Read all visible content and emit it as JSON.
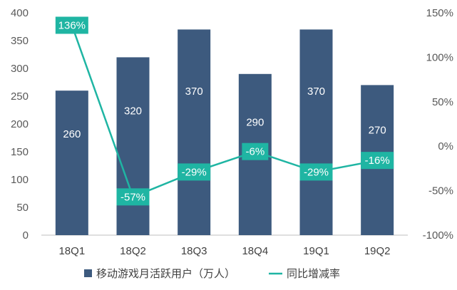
{
  "chart_data": {
    "type": "bar",
    "categories": [
      "18Q1",
      "18Q2",
      "18Q3",
      "18Q4",
      "19Q1",
      "19Q2"
    ],
    "series": [
      {
        "name": "移动游戏月活跃用户（万人）",
        "type": "bar",
        "axis": "left",
        "color": "#3d5a7e",
        "values": [
          260,
          320,
          370,
          290,
          370,
          270
        ],
        "labels": [
          "260",
          "320",
          "370",
          "290",
          "370",
          "270"
        ]
      },
      {
        "name": "同比增减率",
        "type": "line",
        "axis": "right",
        "color": "#1fb5a3",
        "values": [
          136,
          -57,
          -29,
          -6,
          -29,
          -16
        ],
        "labels": [
          "136%",
          "-57%",
          "-29%",
          "-6%",
          "-29%",
          "-16%"
        ]
      }
    ],
    "y_left": {
      "lim": [
        0,
        400
      ],
      "ticks": [
        0,
        50,
        100,
        150,
        200,
        250,
        300,
        350,
        400
      ],
      "tick_labels": [
        "0",
        "50",
        "100",
        "150",
        "200",
        "250",
        "300",
        "350",
        "400"
      ]
    },
    "y_right": {
      "lim": [
        -100,
        150
      ],
      "ticks": [
        -100,
        -50,
        0,
        50,
        100,
        150
      ],
      "tick_labels": [
        "-100%",
        "-50%",
        "0%",
        "50%",
        "100%",
        "150%"
      ]
    },
    "grid": false,
    "legend": "bottom"
  }
}
